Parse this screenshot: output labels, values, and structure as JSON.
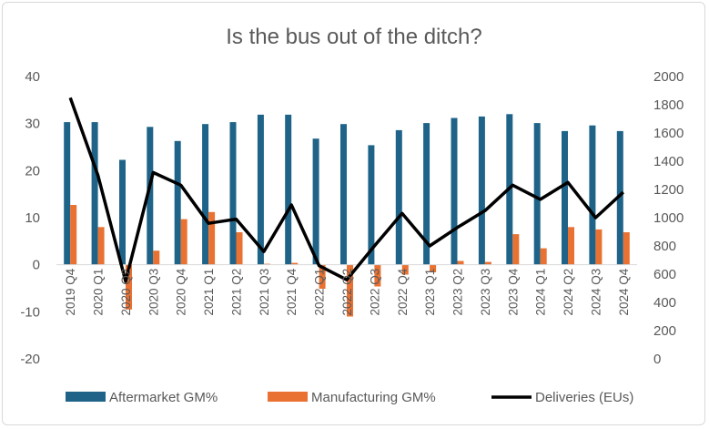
{
  "chart_data": {
    "type": "bar",
    "title": "Is the bus out of the ditch?",
    "categories": [
      "2019 Q4",
      "2020 Q1",
      "2020 Q2",
      "2020 Q3",
      "2020 Q4",
      "2021 Q1",
      "2021 Q2",
      "2021 Q3",
      "2021 Q4",
      "2022 Q1",
      "2022 Q2",
      "2022 Q3",
      "2022 Q4",
      "2023 Q1",
      "2023 Q2",
      "2023 Q3",
      "2023 Q4",
      "2024 Q1",
      "2024 Q2",
      "2024 Q3",
      "2024 Q4"
    ],
    "series": [
      {
        "name": "Aftermarket GM%",
        "type": "bar",
        "axis": "left",
        "color": "#1F6488",
        "values": [
          30.3,
          30.3,
          22.3,
          29.3,
          26.3,
          29.9,
          30.3,
          31.9,
          31.9,
          26.8,
          29.9,
          25.4,
          28.6,
          30.1,
          31.2,
          31.5,
          32.0,
          30.1,
          28.4,
          29.6,
          28.4
        ]
      },
      {
        "name": "Manufacturing GM%",
        "type": "bar",
        "axis": "left",
        "color": "#E97132",
        "values": [
          12.7,
          8.0,
          -9.5,
          3.0,
          9.7,
          11.2,
          6.9,
          0.2,
          0.4,
          -5.1,
          -11.0,
          -4.6,
          -2.1,
          -1.6,
          0.8,
          0.6,
          6.5,
          3.5,
          8.0,
          7.5,
          6.9
        ]
      },
      {
        "name": "Deliveries (EUs)",
        "type": "line",
        "axis": "right",
        "color": "#000000",
        "values": [
          1850,
          1300,
          550,
          1320,
          1230,
          960,
          990,
          760,
          1090,
          660,
          560,
          800,
          1030,
          800,
          930,
          1050,
          1230,
          1130,
          1250,
          1000,
          1180
        ]
      }
    ],
    "y_left": {
      "min": -20,
      "max": 40,
      "ticks": [
        -20,
        -10,
        0,
        10,
        20,
        30,
        40
      ]
    },
    "y_right": {
      "min": 0,
      "max": 2000,
      "ticks": [
        0,
        200,
        400,
        600,
        800,
        1000,
        1200,
        1400,
        1600,
        1800,
        2000
      ]
    },
    "grid": false,
    "legend_position": "bottom"
  }
}
